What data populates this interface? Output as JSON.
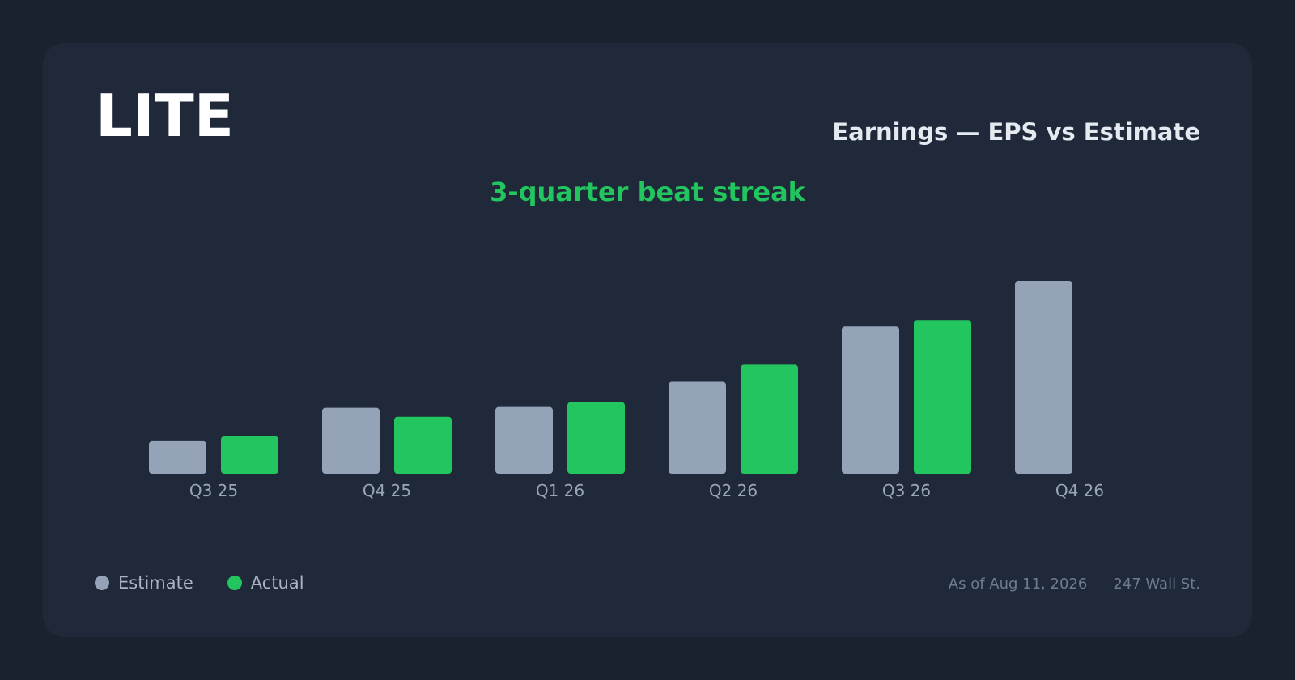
{
  "header": {
    "ticker": "LITE",
    "title": "Earnings — EPS vs Estimate",
    "subtitle": "3-quarter beat streak"
  },
  "legend": {
    "estimate_label": "Estimate",
    "actual_label": "Actual"
  },
  "footer": {
    "as_of": "As of Aug 11, 2026",
    "source": "247 Wall St."
  },
  "colors": {
    "estimate": "#94a3b8",
    "actual": "#22c55e",
    "subtitle": "#22c55e",
    "card_bg": "#1f293a",
    "page_bg": "#1a2230"
  },
  "chart_data": {
    "type": "bar",
    "title": "Earnings — EPS vs Estimate",
    "subtitle": "3-quarter beat streak",
    "categories": [
      "Q3 25",
      "Q4 25",
      "Q1 26",
      "Q2 26",
      "Q3 26",
      "Q4 26"
    ],
    "series": [
      {
        "name": "Estimate",
        "values": [
          0.4,
          0.81,
          0.82,
          1.13,
          1.81,
          2.37
        ]
      },
      {
        "name": "Actual",
        "values": [
          0.46,
          0.7,
          0.88,
          1.34,
          1.89,
          null
        ]
      }
    ],
    "ylim": [
      0,
      2.37
    ],
    "grid": false,
    "legend_position": "bottom-left"
  }
}
